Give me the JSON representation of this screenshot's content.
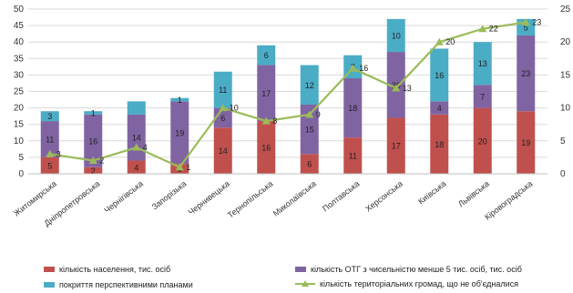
{
  "chart_data": {
    "type": "bar",
    "stacked": true,
    "categories": [
      "Житомирська",
      "Дніпропетровська",
      "Чернігівська",
      "Запорізька",
      "Чернивецька",
      "Тернопільська",
      "Миколаївська",
      "Полтавська",
      "Херсонська",
      "Київська",
      "Львівська",
      "Кіровоградська"
    ],
    "series": [
      {
        "name": "кількість населення, тис. осіб",
        "color": "#c0504d",
        "values": [
          5,
          2,
          4,
          3,
          14,
          16,
          6,
          11,
          17,
          18,
          20,
          19
        ]
      },
      {
        "name": "кількість ОТГ з чисельністю менше 5 тис. осіб, тис. осіб",
        "color": "#8064a2",
        "values": [
          11,
          16,
          14,
          19,
          6,
          17,
          15,
          18,
          20,
          4,
          7,
          23
        ]
      },
      {
        "name": "покриття перспективними планами",
        "color": "#4bacc6",
        "values": [
          3,
          1,
          4,
          1,
          11,
          6,
          12,
          7,
          10,
          16,
          13,
          5
        ]
      }
    ],
    "line_series": {
      "name": "кількість територіальних громад, що не об'єдналися",
      "color": "#9bbb59",
      "marker": "triangle",
      "axis": "right",
      "values": [
        3,
        2,
        4,
        1,
        10,
        8,
        9,
        16,
        13,
        20,
        22,
        23
      ]
    },
    "stack_labels": [
      [
        "5",
        "11",
        "3"
      ],
      [
        "2",
        "16",
        "1"
      ],
      [
        "4",
        "14",
        ""
      ],
      [
        "3",
        "19",
        "1"
      ],
      [
        "14",
        "6",
        "11"
      ],
      [
        "16",
        "17",
        "6"
      ],
      [
        "6",
        "15",
        "12"
      ],
      [
        "11",
        "18",
        "7"
      ],
      [
        "17",
        "20",
        "10"
      ],
      [
        "18",
        "4",
        "16"
      ],
      [
        "20",
        "7",
        "13"
      ],
      [
        "19",
        "23",
        "5"
      ]
    ],
    "ylim": [
      0,
      50
    ],
    "yticks": [
      "0",
      "5",
      "10",
      "15",
      "20",
      "25",
      "30",
      "35",
      "40",
      "45",
      "50"
    ],
    "y2lim": [
      0,
      25
    ],
    "y2ticks": [
      "0",
      "5",
      "10",
      "15",
      "20",
      "25"
    ],
    "grid": true,
    "legend_position": "bottom"
  }
}
